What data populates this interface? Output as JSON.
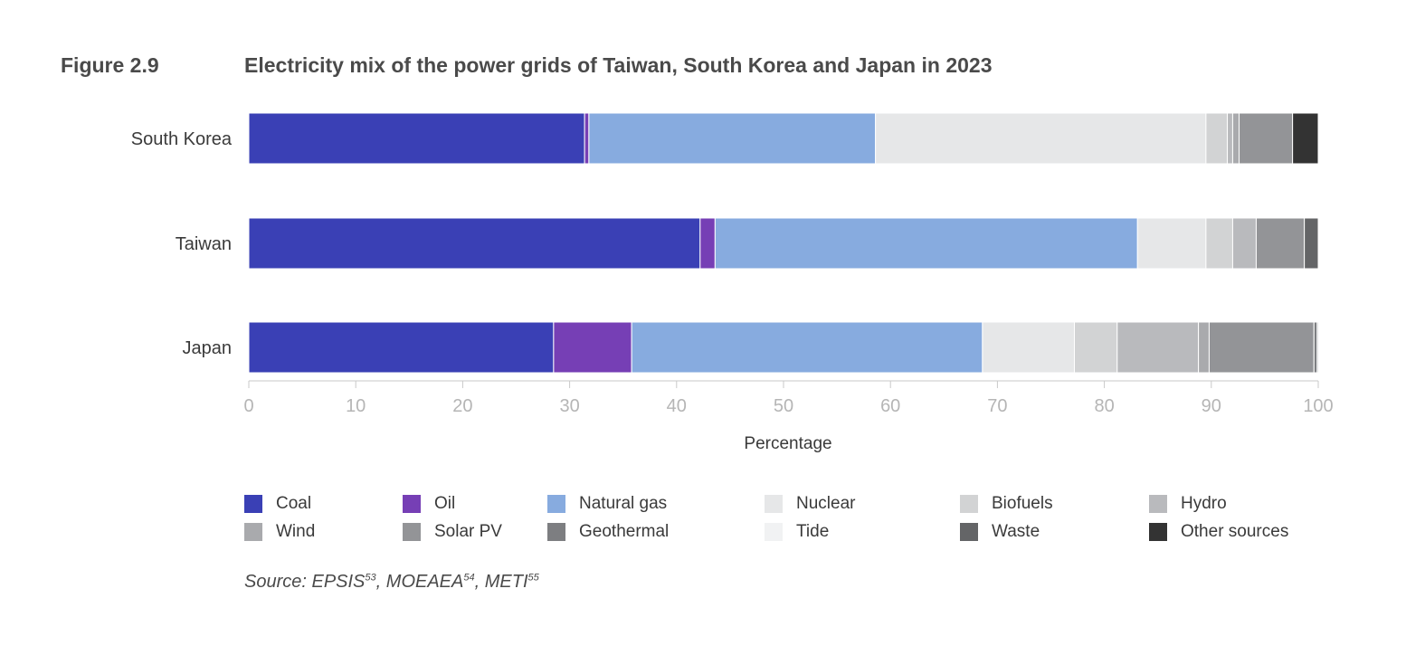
{
  "figure": {
    "label": "Figure 2.9",
    "title": "Electricity mix of the power grids of Taiwan, South Korea and Japan in 2023"
  },
  "chart_data": {
    "type": "bar",
    "orientation": "horizontal",
    "stacked": true,
    "categories": [
      "South Korea",
      "Taiwan",
      "Japan"
    ],
    "xlabel": "Percentage",
    "xlim": [
      0,
      100
    ],
    "xticks": [
      0,
      10,
      20,
      30,
      40,
      50,
      60,
      70,
      80,
      90,
      100
    ],
    "grid": false,
    "legend_position": "bottom",
    "series": [
      {
        "name": "Coal",
        "color": "#3a40b5",
        "values": [
          31.4,
          42.2,
          28.5
        ]
      },
      {
        "name": "Oil",
        "color": "#763fb5",
        "values": [
          0.4,
          1.4,
          7.3
        ]
      },
      {
        "name": "Natural gas",
        "color": "#87abdf",
        "values": [
          26.8,
          39.5,
          32.8
        ]
      },
      {
        "name": "Nuclear",
        "color": "#e6e7e8",
        "values": [
          30.9,
          6.4,
          8.6
        ]
      },
      {
        "name": "Biofuels",
        "color": "#d2d3d4",
        "values": [
          2.0,
          2.5,
          4.0
        ]
      },
      {
        "name": "Hydro",
        "color": "#b9babd",
        "values": [
          0.5,
          2.2,
          7.6
        ]
      },
      {
        "name": "Wind",
        "color": "#a9aaad",
        "values": [
          0.6,
          0,
          1.0
        ]
      },
      {
        "name": "Solar PV",
        "color": "#939497",
        "values": [
          5.0,
          4.5,
          9.8
        ]
      },
      {
        "name": "Geothermal",
        "color": "#7d7e81",
        "values": [
          0,
          0,
          0.3
        ]
      },
      {
        "name": "Tide",
        "color": "#f2f3f4",
        "values": [
          0,
          0,
          0
        ]
      },
      {
        "name": "Waste",
        "color": "#646567",
        "values": [
          0,
          1.3,
          0.1
        ]
      },
      {
        "name": "Other sources",
        "color": "#333333",
        "values": [
          2.4,
          0,
          0
        ]
      }
    ]
  },
  "source": {
    "prefix": "Source: ",
    "refs": [
      {
        "text": "EPSIS",
        "sup": "53"
      },
      {
        "text": "MOEAEA",
        "sup": "54"
      },
      {
        "text": "METI",
        "sup": "55"
      }
    ]
  }
}
